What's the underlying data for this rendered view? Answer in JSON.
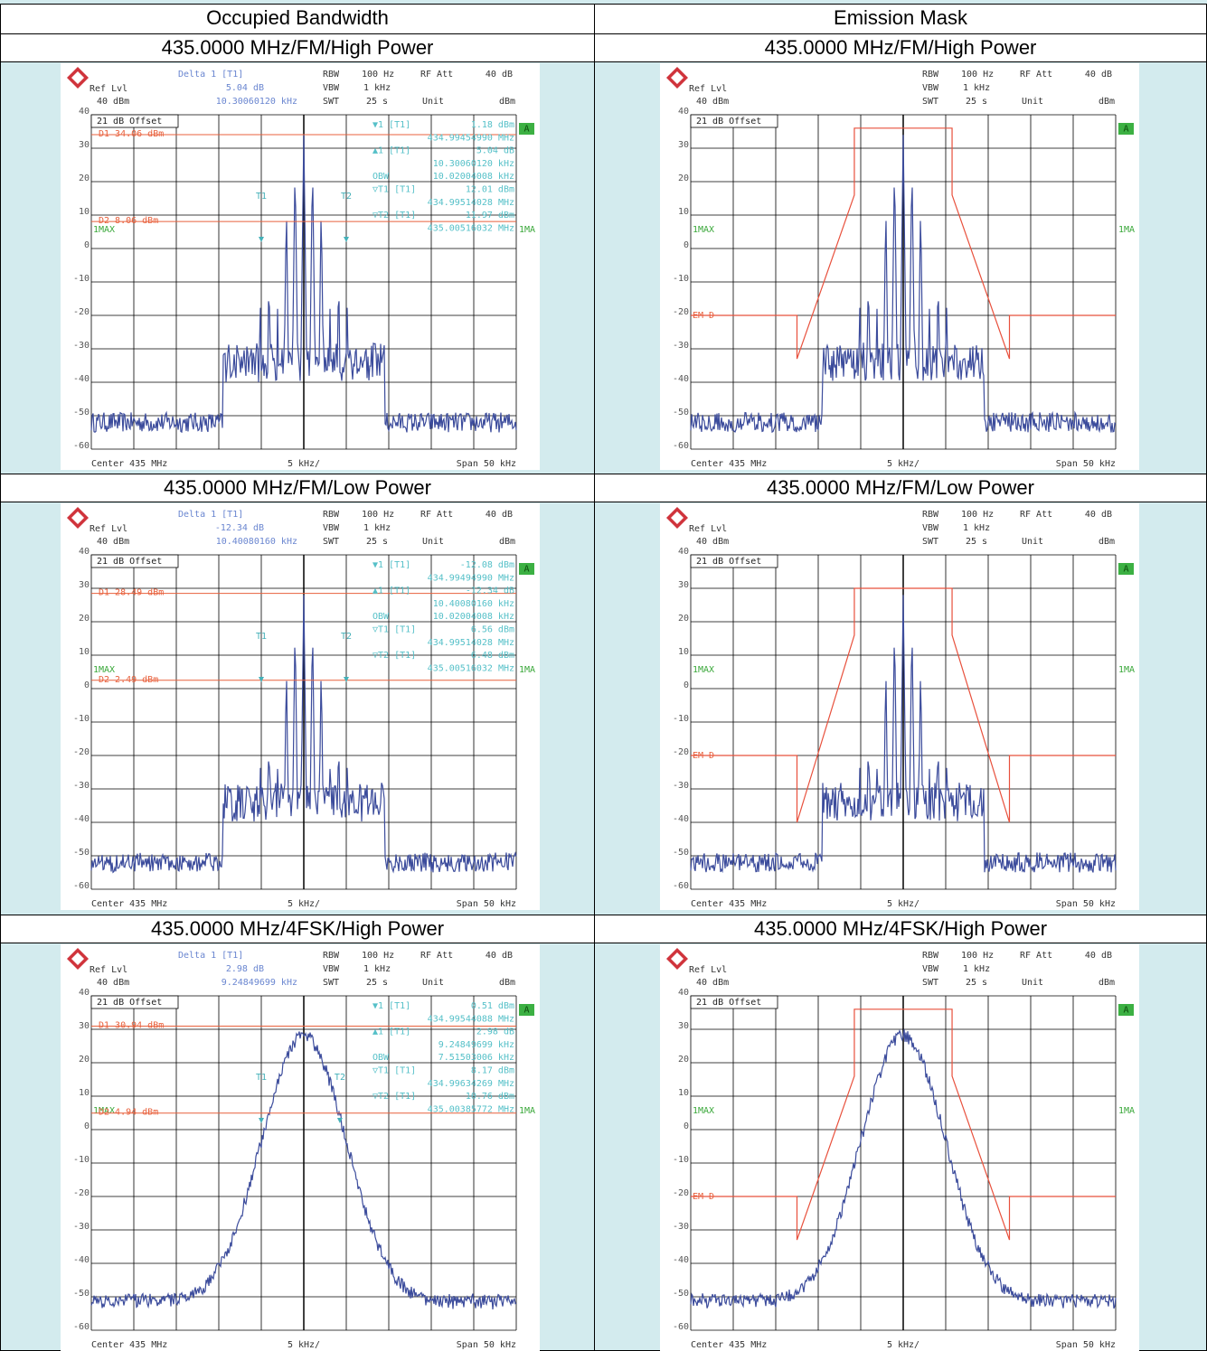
{
  "table": {
    "columns": [
      "Occupied Bandwidth",
      "Emission Mask"
    ],
    "rows": [
      {
        "cells": [
          {
            "caption": "435.0000 MHz/FM/High Power",
            "plot": {
              "header": {
                "ref_lvl": "Ref Lvl",
                "ref_level": "40 dBm",
                "delta": "Delta 1 [T1]",
                "delta_level": "5.04 dB",
                "delta_freq": "10.30060120 kHz",
                "rbw": "RBW",
                "rbw_value": "100 Hz",
                "rf_att": "RF Att",
                "rf_att_value": "40 dB",
                "vbw": "VBW",
                "vbw_value": "1 kHz",
                "swt": "SWT",
                "swt_value": "25 s",
                "unit": "Unit",
                "unit_value": "dBm"
              },
              "offset": "21 dB Offset",
              "yticks": [
                40,
                30,
                20,
                10,
                0,
                -10,
                -20,
                -30,
                -40,
                -50,
                -60
              ],
              "readouts": [
                {
                  "label": "▼1 [T1]",
                  "value": "1.18 dBm"
                },
                {
                  "value": "434.99454990 MHz"
                },
                {
                  "label": "▲1 [T1]",
                  "value": "5.04 dB"
                },
                {
                  "value": "10.30060120 kHz"
                },
                {
                  "label": "OBW",
                  "value": "10.02004008 kHz"
                },
                {
                  "label": "▽T1 [T1]",
                  "value": "12.01 dBm"
                },
                {
                  "value": "434.99514028 MHz"
                },
                {
                  "label": "▽T2 [T1]",
                  "value": "11.97 dBm"
                },
                {
                  "value": "435.00516032 MHz"
                }
              ],
              "display_lines": [
                "D1 34.06 dBm",
                "D2 8.06 dBm"
              ],
              "markers": [
                "T1",
                "T2"
              ],
              "trace": "1MAX",
              "trace_right": "1MA",
              "badge": "A",
              "footer": {
                "center": "Center 435 MHz",
                "div": "5 kHz/",
                "span": "Span 50 kHz"
              }
            }
          },
          {
            "caption": "435.0000 MHz/FM/High Power",
            "plot": {
              "header": {
                "ref_lvl": "Ref Lvl",
                "ref_level": "40 dBm",
                "rbw": "RBW",
                "rbw_value": "100 Hz",
                "rf_att": "RF Att",
                "rf_att_value": "40 dB",
                "vbw": "VBW",
                "vbw_value": "1 kHz",
                "swt": "SWT",
                "swt_value": "25 s",
                "unit": "Unit",
                "unit_value": "dBm"
              },
              "offset": "21 dB Offset",
              "yticks": [
                40,
                30,
                20,
                10,
                0,
                -10,
                -20,
                -30,
                -40,
                -50,
                -60
              ],
              "limit_line": "EM D",
              "trace": "1MAX",
              "trace_right": "1MA",
              "badge": "A",
              "footer": {
                "center": "Center 435 MHz",
                "div": "5 kHz/",
                "span": "Span 50 kHz"
              }
            }
          }
        ]
      },
      {
        "cells": [
          {
            "caption": "435.0000 MHz/FM/Low Power",
            "plot": {
              "header": {
                "ref_lvl": "Ref Lvl",
                "ref_level": "40 dBm",
                "delta": "Delta 1 [T1]",
                "delta_level": "-12.34 dB",
                "delta_freq": "10.40080160 kHz",
                "rbw": "RBW",
                "rbw_value": "100 Hz",
                "rf_att": "RF Att",
                "rf_att_value": "40 dB",
                "vbw": "VBW",
                "vbw_value": "1 kHz",
                "swt": "SWT",
                "swt_value": "25 s",
                "unit": "Unit",
                "unit_value": "dBm"
              },
              "offset": "21 dB Offset",
              "yticks": [
                40,
                30,
                20,
                10,
                0,
                -10,
                -20,
                -30,
                -40,
                -50,
                -60
              ],
              "readouts": [
                {
                  "label": "▼1 [T1]",
                  "value": "-12.08 dBm"
                },
                {
                  "value": "434.99494990 MHz"
                },
                {
                  "label": "▲1 [T1]",
                  "value": "-12.34 dB"
                },
                {
                  "value": "10.40080160 kHz"
                },
                {
                  "label": "OBW",
                  "value": "10.02004008 kHz"
                },
                {
                  "label": "▽T1 [T1]",
                  "value": "6.56 dBm"
                },
                {
                  "value": "434.99514028 MHz"
                },
                {
                  "label": "▽T2 [T1]",
                  "value": "6.48 dBm"
                },
                {
                  "value": "435.00516032 MHz"
                }
              ],
              "display_lines": [
                "D1 28.49 dBm",
                "D2 2.49 dBm"
              ],
              "markers": [
                "T1",
                "T2"
              ],
              "trace": "1MAX",
              "trace_right": "1MA",
              "badge": "A",
              "footer": {
                "center": "Center 435 MHz",
                "div": "5 kHz/",
                "span": "Span 50 kHz"
              }
            }
          },
          {
            "caption": "435.0000 MHz/FM/Low Power",
            "plot": {
              "header": {
                "ref_lvl": "Ref Lvl",
                "ref_level": "40 dBm",
                "rbw": "RBW",
                "rbw_value": "100 Hz",
                "rf_att": "RF Att",
                "rf_att_value": "40 dB",
                "vbw": "VBW",
                "vbw_value": "1 kHz",
                "swt": "SWT",
                "swt_value": "25 s",
                "unit": "Unit",
                "unit_value": "dBm"
              },
              "offset": "21 dB Offset",
              "yticks": [
                40,
                30,
                20,
                10,
                0,
                -10,
                -20,
                -30,
                -40,
                -50,
                -60
              ],
              "limit_line": "EM D",
              "trace": "1MAX",
              "trace_right": "1MA",
              "badge": "A",
              "footer": {
                "center": "Center 435 MHz",
                "div": "5 kHz/",
                "span": "Span 50 kHz"
              }
            }
          }
        ]
      },
      {
        "cells": [
          {
            "caption": "435.0000 MHz/4FSK/High Power",
            "plot": {
              "header": {
                "ref_lvl": "Ref Lvl",
                "ref_level": "40 dBm",
                "delta": "Delta 1 [T1]",
                "delta_level": "2.98 dB",
                "delta_freq": "9.24849699 kHz",
                "rbw": "RBW",
                "rbw_value": "100 Hz",
                "rf_att": "RF Att",
                "rf_att_value": "40 dB",
                "vbw": "VBW",
                "vbw_value": "1 kHz",
                "swt": "SWT",
                "swt_value": "25 s",
                "unit": "Unit",
                "unit_value": "dBm"
              },
              "offset": "21 dB Offset",
              "yticks": [
                40,
                30,
                20,
                10,
                0,
                -10,
                -20,
                -30,
                -40,
                -50,
                -60
              ],
              "readouts": [
                {
                  "label": "▼1 [T1]",
                  "value": "0.51 dBm"
                },
                {
                  "value": "434.99544088 MHz"
                },
                {
                  "label": "▲1 [T1]",
                  "value": "2.98 dB"
                },
                {
                  "value": "9.24849699 kHz"
                },
                {
                  "label": "OBW",
                  "value": "7.51503006 kHz"
                },
                {
                  "label": "▽T1 [T1]",
                  "value": "8.17 dBm"
                },
                {
                  "value": "434.99634269 MHz"
                },
                {
                  "label": "▽T2 [T1]",
                  "value": "10.76 dBm"
                },
                {
                  "value": "435.00385772 MHz"
                }
              ],
              "display_lines": [
                "D1 30.94 dBm",
                "D2 4.94 dBm"
              ],
              "markers": [
                "T1",
                "T2"
              ],
              "trace": "1MAX",
              "trace_right": "1MA",
              "badge": "A",
              "footer": {
                "center": "Center 435 MHz",
                "div": "5 kHz/",
                "span": "Span 50 kHz"
              }
            }
          },
          {
            "caption": "435.0000 MHz/4FSK/High Power",
            "plot": {
              "header": {
                "ref_lvl": "Ref Lvl",
                "ref_level": "40 dBm",
                "rbw": "RBW",
                "rbw_value": "100 Hz",
                "rf_att": "RF Att",
                "rf_att_value": "40 dB",
                "vbw": "VBW",
                "vbw_value": "1 kHz",
                "swt": "SWT",
                "swt_value": "25 s",
                "unit": "Unit",
                "unit_value": "dBm"
              },
              "offset": "21 dB Offset",
              "yticks": [
                40,
                30,
                20,
                10,
                0,
                -10,
                -20,
                -30,
                -40,
                -50,
                -60
              ],
              "limit_line": "EM D",
              "trace": "1MAX",
              "trace_right": "1MA",
              "badge": "A",
              "footer": {
                "center": "Center 435 MHz",
                "div": "5 kHz/",
                "span": "Span 50 kHz"
              }
            }
          }
        ]
      }
    ]
  }
}
